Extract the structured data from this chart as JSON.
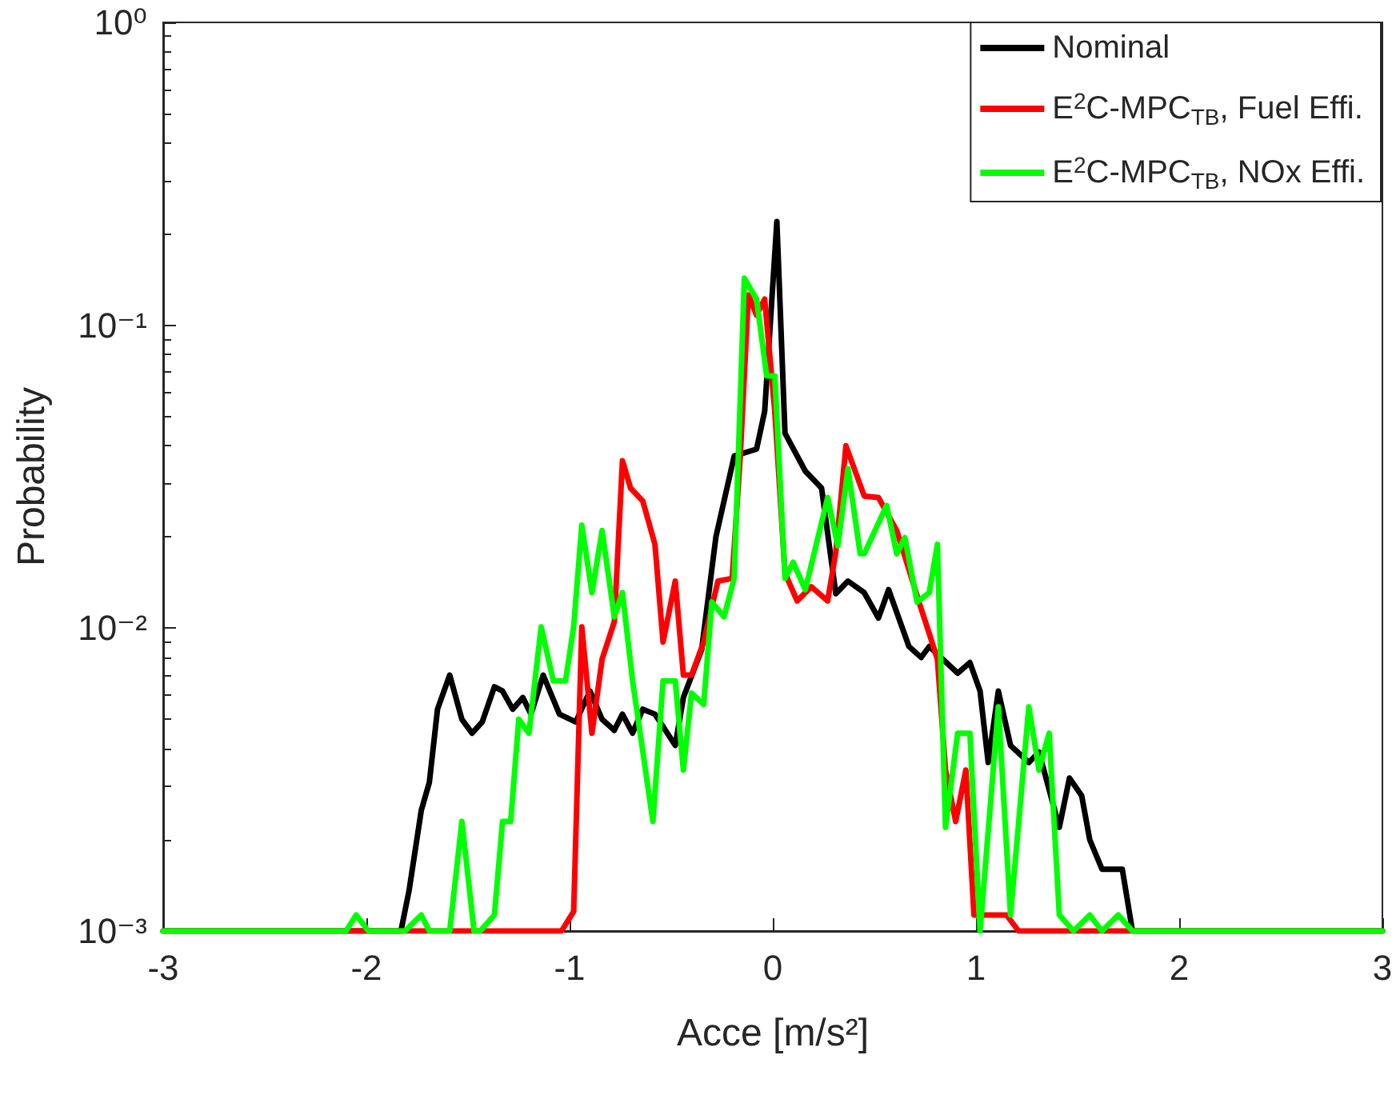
{
  "chart_data": {
    "type": "line",
    "xlabel": "Acce [m/s²]",
    "ylabel": "Probability",
    "xlim": [
      -3,
      3
    ],
    "xticks": [
      -3,
      -2,
      -1,
      0,
      1,
      2,
      3
    ],
    "ylim": [
      0.001,
      1
    ],
    "yticks": [
      {
        "value": 0.001,
        "label": "10⁻³"
      },
      {
        "value": 0.01,
        "label": "10⁻²"
      },
      {
        "value": 0.1,
        "label": "10⁻¹"
      },
      {
        "value": 1,
        "label": "10⁰"
      }
    ],
    "log": "y",
    "grid": false,
    "legend": "top right",
    "marker": "none",
    "line_style": "solid",
    "series": [
      {
        "name": "Nominal",
        "color": "#000000",
        "x": [
          -3,
          -1.83,
          -1.79,
          -1.73,
          -1.69,
          -1.65,
          -1.59,
          -1.53,
          -1.48,
          -1.43,
          -1.37,
          -1.33,
          -1.28,
          -1.23,
          -1.19,
          -1.13,
          -1.05,
          -0.97,
          -0.9,
          -0.84,
          -0.78,
          -0.74,
          -0.69,
          -0.64,
          -0.58,
          -0.48,
          -0.44,
          -0.35,
          -0.28,
          -0.19,
          -0.08,
          -0.04,
          0.02,
          0.06,
          0.16,
          0.24,
          0.31,
          0.37,
          0.45,
          0.52,
          0.57,
          0.67,
          0.73,
          0.77,
          0.91,
          0.97,
          1.02,
          1.06,
          1.11,
          1.17,
          1.26,
          1.31,
          1.41,
          1.46,
          1.52,
          1.56,
          1.62,
          1.72,
          1.77,
          3
        ],
        "values": [
          0.001,
          0.001,
          0.00136,
          0.0025,
          0.0031,
          0.0054,
          0.007,
          0.005,
          0.0045,
          0.0049,
          0.0064,
          0.0062,
          0.0054,
          0.0059,
          0.0052,
          0.007,
          0.0052,
          0.0049,
          0.0062,
          0.005,
          0.0046,
          0.0052,
          0.0045,
          0.0054,
          0.0052,
          0.0041,
          0.0059,
          0.0085,
          0.02,
          0.037,
          0.039,
          0.052,
          0.22,
          0.044,
          0.033,
          0.029,
          0.013,
          0.0143,
          0.0131,
          0.0108,
          0.0134,
          0.0087,
          0.008,
          0.0087,
          0.0071,
          0.0077,
          0.0062,
          0.0036,
          0.0062,
          0.0041,
          0.0036,
          0.0039,
          0.0022,
          0.0032,
          0.0028,
          0.002,
          0.0016,
          0.0016,
          0.001,
          0.001
        ]
      },
      {
        "name": "E$^{2}$C-MPC$_{TB}$, Fuel Effi.",
        "color": "#ff0000",
        "x": [
          -3,
          -1.04,
          -0.98,
          -0.94,
          -0.89,
          -0.84,
          -0.78,
          -0.74,
          -0.7,
          -0.64,
          -0.58,
          -0.54,
          -0.48,
          -0.44,
          -0.4,
          -0.34,
          -0.27,
          -0.2,
          -0.16,
          -0.12,
          -0.08,
          -0.04,
          0.01,
          0.06,
          0.12,
          0.19,
          0.27,
          0.31,
          0.36,
          0.45,
          0.52,
          0.61,
          0.73,
          0.77,
          0.81,
          0.85,
          0.9,
          0.95,
          0.99,
          1.15,
          1.21,
          3
        ],
        "values": [
          0.001,
          0.001,
          0.00116,
          0.0101,
          0.0045,
          0.0079,
          0.0105,
          0.0357,
          0.029,
          0.0263,
          0.0189,
          0.009,
          0.0143,
          0.007,
          0.007,
          0.009,
          0.0143,
          0.0146,
          0.037,
          0.126,
          0.108,
          0.122,
          0.052,
          0.0152,
          0.0123,
          0.0137,
          0.0123,
          0.0178,
          0.04,
          0.0273,
          0.027,
          0.021,
          0.0116,
          0.0096,
          0.0079,
          0.0034,
          0.0023,
          0.0034,
          0.00113,
          0.00113,
          0.001,
          0.001
        ]
      },
      {
        "name": "E$^{2}$C-MPC$_{TB}$, NOx Effi.",
        "color": "#00ff00",
        "x": [
          -3,
          -2.1,
          -2.05,
          -1.99,
          -1.81,
          -1.73,
          -1.69,
          -1.59,
          -1.53,
          -1.47,
          -1.44,
          -1.37,
          -1.33,
          -1.29,
          -1.25,
          -1.2,
          -1.14,
          -1.08,
          -1.02,
          -0.98,
          -0.94,
          -0.89,
          -0.84,
          -0.78,
          -0.74,
          -0.69,
          -0.59,
          -0.54,
          -0.48,
          -0.44,
          -0.4,
          -0.34,
          -0.3,
          -0.24,
          -0.19,
          -0.14,
          -0.08,
          -0.03,
          0.01,
          0.06,
          0.1,
          0.16,
          0.27,
          0.32,
          0.37,
          0.43,
          0.45,
          0.56,
          0.61,
          0.65,
          0.71,
          0.77,
          0.81,
          0.85,
          0.91,
          0.97,
          1.02,
          1.11,
          1.17,
          1.26,
          1.31,
          1.36,
          1.41,
          1.48,
          1.56,
          1.62,
          1.7,
          1.77,
          3
        ],
        "values": [
          0.001,
          0.001,
          0.00113,
          0.001,
          0.001,
          0.00113,
          0.001,
          0.001,
          0.0023,
          0.001,
          0.001,
          0.00113,
          0.0023,
          0.0023,
          0.005,
          0.0045,
          0.0101,
          0.0067,
          0.0067,
          0.0101,
          0.0219,
          0.0131,
          0.021,
          0.0109,
          0.0131,
          0.0067,
          0.0023,
          0.0067,
          0.0067,
          0.0034,
          0.0061,
          0.0056,
          0.0122,
          0.0109,
          0.0146,
          0.143,
          0.122,
          0.068,
          0.068,
          0.0146,
          0.0165,
          0.0134,
          0.027,
          0.0187,
          0.0336,
          0.0176,
          0.0176,
          0.0254,
          0.0176,
          0.0199,
          0.0122,
          0.0131,
          0.0189,
          0.0022,
          0.0045,
          0.0045,
          0.001,
          0.0055,
          0.00113,
          0.0055,
          0.0034,
          0.0045,
          0.00113,
          0.001,
          0.00113,
          0.001,
          0.00113,
          0.001,
          0.001
        ]
      }
    ]
  }
}
